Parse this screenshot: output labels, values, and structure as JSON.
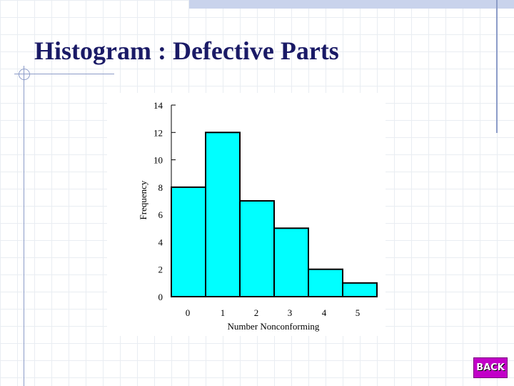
{
  "slide": {
    "title": "Histogram : Defective Parts",
    "back_label": "BACK"
  },
  "chart_data": {
    "type": "bar",
    "categories": [
      "0",
      "1",
      "2",
      "3",
      "4",
      "5"
    ],
    "values": [
      8,
      12,
      7,
      5,
      2,
      1
    ],
    "title": "",
    "xlabel": "Number Nonconforming",
    "ylabel": "Frequency",
    "ylim": [
      0,
      14
    ],
    "yticks": [
      "0",
      "2",
      "4",
      "6",
      "8",
      "10",
      "12",
      "14"
    ],
    "grid": false,
    "bar_color": "#00ffff"
  }
}
